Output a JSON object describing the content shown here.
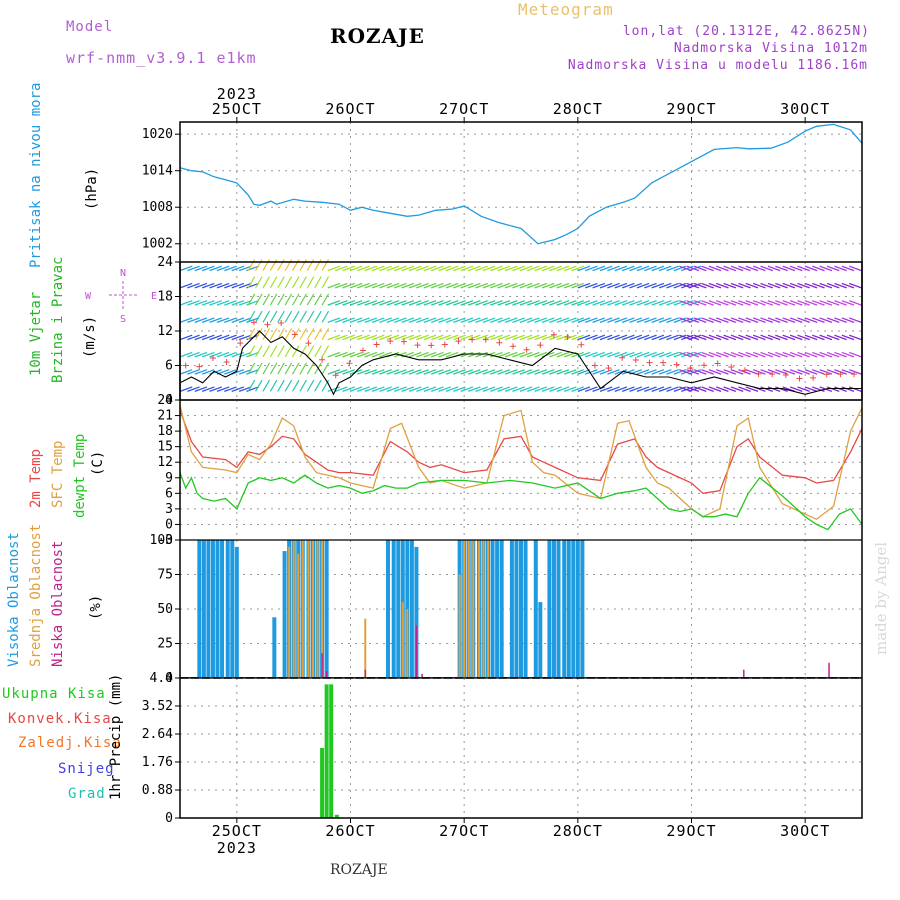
{
  "colors": {
    "model": "#b060d0",
    "meteogram": "#e8c070",
    "location": "#a040c8",
    "pressure": "#1e9be0",
    "wind_title": "#22b822",
    "wind_units": "#000000",
    "compass": "#c050d0",
    "t2m": "#e84848",
    "sfc": "#e0a040",
    "dew": "#22c822",
    "high_cloud": "#1e9be0",
    "mid_cloud": "#e0a040",
    "low_cloud": "#c0208a",
    "total_precip": "#22c822",
    "conv_precip": "#e84848",
    "frz_precip": "#f07828",
    "snow": "#4040e0",
    "hail": "#20c0b0",
    "watermark": "#d8d8d8",
    "grid": "#999999"
  },
  "header": {
    "model_label": "Model",
    "model_name": "wrf-nmm_v3.9.1 e1km",
    "title": "ROZAJE",
    "meteogram_label": "Meteogram",
    "lonlat": "lon,lat (20.1312E, 42.8625N)",
    "elevation": "Nadmorska Visina 1012m",
    "model_elevation": "Nadmorska Visina u modelu 1186.16m"
  },
  "footer": {
    "location": "ROZAJE",
    "watermark": "made by Angel"
  },
  "panels": {
    "pressure": {
      "title": "Pritisak na nivou mora",
      "units": "(hPa)"
    },
    "wind": {
      "title_line1": "10m Vjetar",
      "title_line2": "Brzina i Pravac",
      "units": "(m/s)",
      "compass_n": "N",
      "compass_s": "S",
      "compass_e": "E",
      "compass_w": "W"
    },
    "temp": {
      "t2m": "2m Temp",
      "sfc": "SFC Temp",
      "dew": "dewpt Temp",
      "units": "(C)"
    },
    "cloud": {
      "high": "Visoka Oblacnost",
      "mid": "Srednja Oblacnost",
      "low": "Niska Oblacnost",
      "units": "(%)"
    },
    "precip": {
      "total": "Ukupna Kisa",
      "convective": "Konvek.Kisa",
      "freezing": "Zaledj.Kisa",
      "snow": "Snijeg",
      "hail": "Grad",
      "units": "1hr Precip (mm)"
    }
  },
  "chart_data": [
    {
      "type": "line",
      "panel": "pressure",
      "x_labels_top": [
        "25OCT",
        "26OCT",
        "27OCT",
        "28OCT",
        "29OCT",
        "30OCT"
      ],
      "year_top": "2023",
      "x_labels_bottom": [
        "25OCT",
        "26OCT",
        "27OCT",
        "28OCT",
        "29OCT",
        "30OCT"
      ],
      "year_bottom": "2023",
      "x_range_days": [
        -0.5,
        5.5
      ],
      "ylim": [
        999,
        1022
      ],
      "yticks": [
        "1002",
        "1008",
        "1014",
        "1020"
      ],
      "grid": true,
      "series": [
        {
          "name": "Pritisak na nivou mora",
          "x": [
            -0.5,
            -0.4,
            -0.3,
            -0.2,
            -0.1,
            0,
            0.1,
            0.15,
            0.2,
            0.3,
            0.35,
            0.5,
            0.6,
            0.75,
            0.9,
            1.0,
            1.1,
            1.2,
            1.35,
            1.5,
            1.6,
            1.75,
            1.9,
            2.0,
            2.15,
            2.3,
            2.5,
            2.65,
            2.8,
            2.9,
            3.0,
            3.1,
            3.25,
            3.4,
            3.5,
            3.65,
            3.8,
            4.0,
            4.2,
            4.4,
            4.5,
            4.7,
            4.85,
            5.0,
            5.1,
            5.25,
            5.4,
            5.5
          ],
          "values": [
            1014.5,
            1014,
            1013.8,
            1013,
            1012.5,
            1012,
            1010,
            1008.5,
            1008.3,
            1009,
            1008.5,
            1009.3,
            1009,
            1008.8,
            1008.5,
            1007.5,
            1008,
            1007.5,
            1007,
            1006.5,
            1006.7,
            1007.5,
            1007.7,
            1008.2,
            1006.5,
            1005.5,
            1004.5,
            1002,
            1002.7,
            1003.5,
            1004.5,
            1006.5,
            1008,
            1008.8,
            1009.5,
            1012,
            1013.5,
            1015.5,
            1017.5,
            1017.8,
            1017.6,
            1017.7,
            1018.7,
            1020.5,
            1021.3,
            1021.6,
            1020.7,
            1018.5
          ]
        }
      ]
    },
    {
      "type": "line",
      "panel": "wind",
      "ylim": [
        0,
        24
      ],
      "yticks": [
        "0",
        "6",
        "12",
        "18",
        "24"
      ],
      "grid": true,
      "series": [
        {
          "name": "wind speed",
          "x": [
            -0.5,
            -0.4,
            -0.3,
            -0.2,
            -0.1,
            0,
            0.05,
            0.1,
            0.15,
            0.2,
            0.3,
            0.4,
            0.5,
            0.6,
            0.7,
            0.8,
            0.85,
            0.9,
            1.0,
            1.1,
            1.2,
            1.4,
            1.6,
            1.8,
            2.0,
            2.2,
            2.4,
            2.6,
            2.8,
            3.0,
            3.2,
            3.4,
            3.6,
            3.8,
            4.0,
            4.2,
            4.4,
            4.6,
            4.8,
            5.0,
            5.2,
            5.4,
            5.5
          ],
          "values": [
            3,
            4,
            3,
            5,
            4,
            5,
            9,
            10,
            11,
            12,
            10,
            11,
            9,
            8,
            6,
            3,
            1,
            3,
            4,
            6,
            7,
            8,
            7,
            7,
            8,
            8,
            7,
            6,
            9,
            8,
            2,
            5,
            4,
            4,
            3,
            4,
            3,
            2,
            2,
            1,
            2,
            2,
            2
          ]
        }
      ],
      "arrow_colors_by_day": [
        {
          "from": -0.5,
          "to": 0.1,
          "rows_colors": [
            "#3050e0",
            "#1e9be0",
            "#20c8c0"
          ]
        },
        {
          "from": 0.1,
          "to": 0.8,
          "rows_colors": [
            "#20c8a0",
            "#60d040",
            "#a0e020",
            "#f0c020"
          ]
        },
        {
          "from": 0.8,
          "to": 3.0,
          "rows_colors": [
            "#20c8c0",
            "#20c890",
            "#60d040",
            "#a0e020"
          ]
        },
        {
          "from": 3.0,
          "to": 4.0,
          "rows_colors": [
            "#3050e0",
            "#1e9be0",
            "#20c8c0"
          ]
        },
        {
          "from": 4.0,
          "to": 5.5,
          "rows_colors": [
            "#8020d0",
            "#a030e0",
            "#c040e0"
          ]
        }
      ]
    },
    {
      "type": "line",
      "panel": "temp",
      "ylim": [
        -3,
        24
      ],
      "yticks": [
        "-3",
        "0",
        "3",
        "6",
        "9",
        "12",
        "15",
        "18",
        "21",
        "24"
      ],
      "grid": true,
      "series": [
        {
          "name": "2m Temp",
          "x": [
            -0.5,
            -0.4,
            -0.3,
            -0.1,
            0.0,
            0.1,
            0.2,
            0.3,
            0.4,
            0.5,
            0.6,
            0.7,
            0.8,
            0.9,
            1.0,
            1.2,
            1.35,
            1.5,
            1.6,
            1.7,
            1.8,
            2.0,
            2.2,
            2.35,
            2.5,
            2.6,
            2.7,
            2.8,
            3.0,
            3.2,
            3.35,
            3.5,
            3.6,
            3.7,
            3.8,
            4.0,
            4.1,
            4.25,
            4.4,
            4.5,
            4.6,
            4.8,
            5.0,
            5.1,
            5.25,
            5.4,
            5.5
          ],
          "values": [
            22,
            16,
            13,
            12.5,
            11,
            14,
            13.5,
            15,
            17,
            16.5,
            13.5,
            12,
            10.5,
            10,
            10,
            9.5,
            16,
            14,
            12,
            11,
            11.5,
            10,
            10.5,
            16.5,
            17,
            13,
            12,
            11,
            9,
            8.5,
            15.5,
            16.5,
            13,
            11,
            10,
            8,
            6,
            6.5,
            15,
            16.5,
            13,
            9.5,
            9,
            8,
            8.5,
            14,
            18.5
          ]
        },
        {
          "name": "SFC Temp",
          "x": [
            -0.5,
            -0.4,
            -0.3,
            -0.1,
            0.0,
            0.1,
            0.2,
            0.3,
            0.4,
            0.5,
            0.6,
            0.7,
            0.8,
            0.9,
            1.0,
            1.2,
            1.35,
            1.45,
            1.6,
            1.7,
            1.8,
            2.0,
            2.2,
            2.35,
            2.5,
            2.6,
            2.7,
            2.8,
            3.0,
            3.2,
            3.35,
            3.45,
            3.6,
            3.7,
            3.8,
            4.0,
            4.1,
            4.25,
            4.4,
            4.5,
            4.6,
            4.8,
            5.0,
            5.1,
            5.25,
            5.4,
            5.5
          ],
          "values": [
            23,
            14,
            11,
            10.5,
            10,
            13.5,
            12.5,
            15.5,
            20.5,
            19,
            13,
            10,
            9.5,
            9,
            8,
            7,
            18.5,
            19.5,
            11,
            8,
            8.5,
            7,
            8,
            21,
            22,
            12,
            10,
            9.5,
            6,
            5,
            19.5,
            20,
            11,
            8,
            7,
            3,
            1.5,
            3,
            19,
            20.5,
            11,
            4,
            2,
            1,
            3.5,
            18,
            22.5
          ]
        },
        {
          "name": "dewpt Temp",
          "x": [
            -0.5,
            -0.45,
            -0.4,
            -0.35,
            -0.3,
            -0.2,
            -0.1,
            0.0,
            0.1,
            0.2,
            0.3,
            0.4,
            0.5,
            0.6,
            0.7,
            0.8,
            0.9,
            1.0,
            1.1,
            1.2,
            1.3,
            1.4,
            1.5,
            1.6,
            1.8,
            2.0,
            2.2,
            2.4,
            2.6,
            2.8,
            3.0,
            3.1,
            3.2,
            3.35,
            3.5,
            3.6,
            3.7,
            3.8,
            3.9,
            4.0,
            4.1,
            4.2,
            4.3,
            4.4,
            4.5,
            4.6,
            4.8,
            5.0,
            5.1,
            5.2,
            5.3,
            5.4,
            5.5
          ],
          "values": [
            10,
            7,
            9,
            6,
            5,
            4.5,
            5,
            3,
            8,
            9,
            8.5,
            9,
            8,
            9.5,
            8,
            7,
            7.5,
            7,
            6,
            6.5,
            7.5,
            7,
            7,
            8,
            8.5,
            8.5,
            8,
            8.5,
            8,
            7,
            8,
            6.5,
            5,
            6,
            6.5,
            7,
            5,
            3,
            2.5,
            3,
            1.5,
            1.5,
            2,
            1.5,
            6,
            9,
            5.5,
            1.5,
            0,
            -1,
            2,
            3,
            0
          ]
        }
      ]
    },
    {
      "type": "bar",
      "panel": "cloud",
      "ylim": [
        0,
        100
      ],
      "yticks": [
        "0",
        "25",
        "50",
        "75",
        "100"
      ],
      "grid": true,
      "series": [
        {
          "name": "Visoka Oblacnost",
          "x": [
            -0.33,
            -0.29,
            -0.25,
            -0.21,
            -0.17,
            -0.13,
            -0.08,
            -0.04,
            0.0,
            0.33,
            0.42,
            0.46,
            0.5,
            0.54,
            0.58,
            0.63,
            0.67,
            0.71,
            0.75,
            0.79,
            1.33,
            1.38,
            1.42,
            1.46,
            1.5,
            1.54,
            1.58,
            1.96,
            2.0,
            2.04,
            2.08,
            2.13,
            2.17,
            2.21,
            2.25,
            2.29,
            2.33,
            2.42,
            2.46,
            2.5,
            2.54,
            2.63,
            2.67,
            2.75,
            2.79,
            2.83,
            2.88,
            2.92,
            2.96,
            3.0,
            3.04
          ],
          "values": [
            100,
            100,
            100,
            100,
            100,
            100,
            100,
            100,
            95,
            44,
            92,
            100,
            100,
            100,
            100,
            100,
            100,
            100,
            100,
            100,
            100,
            100,
            100,
            100,
            100,
            100,
            95,
            100,
            100,
            100,
            100,
            100,
            100,
            100,
            100,
            100,
            100,
            100,
            100,
            100,
            100,
            100,
            55,
            100,
            100,
            100,
            100,
            100,
            100,
            100,
            100
          ]
        },
        {
          "name": "Srednja Oblacnost",
          "x": [
            0.46,
            0.5,
            0.54,
            0.58,
            0.63,
            0.67,
            0.71,
            0.75,
            1.13,
            1.46,
            1.5,
            1.96,
            2.0,
            2.04,
            2.08,
            2.13,
            2.17,
            2.21
          ],
          "values": [
            95,
            100,
            90,
            100,
            100,
            100,
            100,
            100,
            43,
            55,
            50,
            75,
            100,
            100,
            100,
            100,
            100,
            100
          ]
        },
        {
          "name": "Niska Oblacnost",
          "x": [
            0.75,
            0.79,
            1.13,
            1.58,
            1.63,
            4.46,
            5.21
          ],
          "values": [
            18,
            5,
            6,
            38,
            3,
            6,
            11
          ]
        }
      ]
    },
    {
      "type": "bar",
      "panel": "precip",
      "ylim": [
        0,
        4.4
      ],
      "yticks": [
        "0",
        "0.88",
        "1.76",
        "2.64",
        "3.52",
        "4.4"
      ],
      "grid": true,
      "series": [
        {
          "name": "Ukupna Kisa",
          "x": [
            0.75,
            0.79,
            0.83,
            0.88
          ],
          "values": [
            2.2,
            4.2,
            4.2,
            0.1
          ]
        }
      ]
    }
  ]
}
